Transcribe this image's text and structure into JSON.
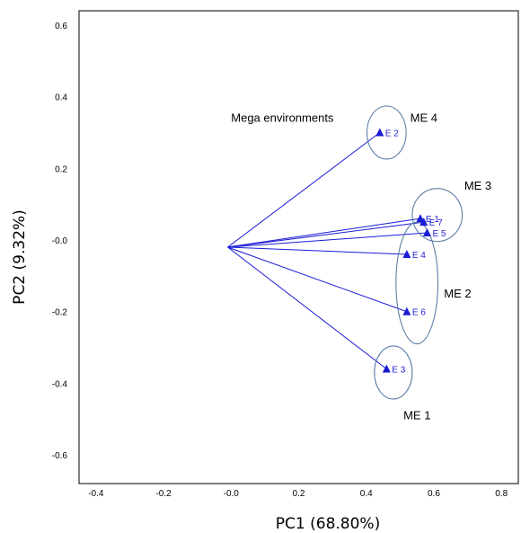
{
  "chart_data": {
    "type": "scatter",
    "xlabel": "PC1 (68.80%)",
    "ylabel": "PC2 (9.32%)",
    "xlim": [
      -0.45,
      0.85
    ],
    "ylim": [
      -0.68,
      0.64
    ],
    "xticks": [
      "-0.4",
      "-0.2",
      "-0.0",
      "0.2",
      "0.4",
      "0.6",
      "0.8"
    ],
    "xtick_values": [
      -0.4,
      -0.2,
      0.0,
      0.2,
      0.4,
      0.6,
      0.8
    ],
    "yticks": [
      "0.6",
      "0.4",
      "0.2",
      "-0.0",
      "-0.2",
      "-0.4",
      "-0.6"
    ],
    "ytick_values": [
      0.6,
      0.4,
      0.2,
      0.0,
      -0.2,
      -0.4,
      -0.6
    ],
    "grid": false,
    "origin": [
      -0.01,
      -0.02
    ],
    "vector_color": "#1a1ad6",
    "ellipse_color": "#5d7ea6",
    "points": [
      {
        "label": "E 2",
        "x": 0.44,
        "y": 0.3
      },
      {
        "label": "E 1",
        "x": 0.56,
        "y": 0.06
      },
      {
        "label": "E 7",
        "x": 0.57,
        "y": 0.05
      },
      {
        "label": "E 5",
        "x": 0.58,
        "y": 0.02
      },
      {
        "label": "E 4",
        "x": 0.52,
        "y": -0.04
      },
      {
        "label": "E 6",
        "x": 0.52,
        "y": -0.2
      },
      {
        "label": "E 3",
        "x": 0.46,
        "y": -0.36
      }
    ],
    "mega_environments": [
      {
        "label": "ME 4",
        "cx": 0.46,
        "cy": 0.3,
        "rx": 0.058,
        "ry": 0.074
      },
      {
        "label": "ME 3",
        "cx": 0.61,
        "cy": 0.07,
        "rx": 0.074,
        "ry": 0.074
      },
      {
        "label": "ME 2",
        "cx": 0.55,
        "cy": -0.12,
        "rx": 0.062,
        "ry": 0.17
      },
      {
        "label": "ME 1",
        "cx": 0.48,
        "cy": -0.37,
        "rx": 0.056,
        "ry": 0.074
      }
    ],
    "annotations": [
      {
        "text": "Mega environments",
        "x": 0.0,
        "y": 0.33
      },
      {
        "text": "ME 4",
        "x": 0.53,
        "y": 0.33
      },
      {
        "text": "ME 3",
        "x": 0.69,
        "y": 0.14
      },
      {
        "text": "ME 2",
        "x": 0.63,
        "y": -0.16
      },
      {
        "text": "ME 1",
        "x": 0.51,
        "y": -0.5
      }
    ]
  }
}
